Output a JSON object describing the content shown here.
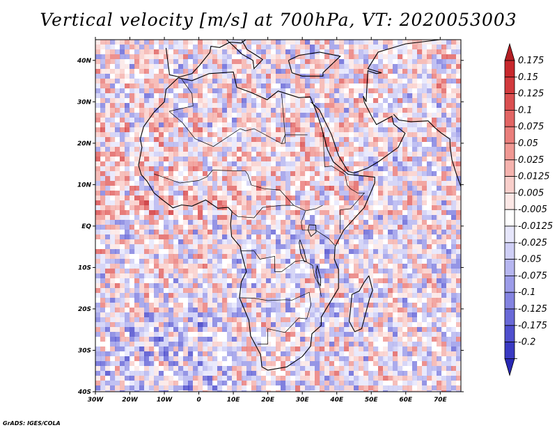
{
  "title": "Vertical velocity [m/s] at 700hPa, VT: 2020053003",
  "credit": "GrADS: IGES/COLA",
  "map": {
    "region": "Africa",
    "variable": "vertical velocity",
    "level": "700hPa",
    "valid_time": "2020053003",
    "lon_range": [
      -30,
      76
    ],
    "lat_range": [
      -40,
      45
    ],
    "lon_ticks": [
      {
        "value": -30,
        "label": "30W"
      },
      {
        "value": -20,
        "label": "20W"
      },
      {
        "value": -10,
        "label": "10W"
      },
      {
        "value": 0,
        "label": "0"
      },
      {
        "value": 10,
        "label": "10E"
      },
      {
        "value": 20,
        "label": "20E"
      },
      {
        "value": 30,
        "label": "30E"
      },
      {
        "value": 40,
        "label": "40E"
      },
      {
        "value": 50,
        "label": "50E"
      },
      {
        "value": 60,
        "label": "60E"
      },
      {
        "value": 70,
        "label": "70E"
      }
    ],
    "lat_ticks": [
      {
        "value": 40,
        "label": "40N"
      },
      {
        "value": 30,
        "label": "30N"
      },
      {
        "value": 20,
        "label": "20N"
      },
      {
        "value": 10,
        "label": "10N"
      },
      {
        "value": 0,
        "label": "EQ"
      },
      {
        "value": -10,
        "label": "10S"
      },
      {
        "value": -20,
        "label": "20S"
      },
      {
        "value": -30,
        "label": "30S"
      },
      {
        "value": -40,
        "label": "40S"
      }
    ]
  },
  "colorbar": {
    "levels": [
      {
        "label": "0.175",
        "color": "#c8282d"
      },
      {
        "label": "0.15",
        "color": "#d23a3d"
      },
      {
        "label": "0.125",
        "color": "#da4f50"
      },
      {
        "label": "0.1",
        "color": "#e26564"
      },
      {
        "label": "0.075",
        "color": "#ea7e7b"
      },
      {
        "label": "0.05",
        "color": "#f09893"
      },
      {
        "label": "0.025",
        "color": "#f5b3ae"
      },
      {
        "label": "0.0125",
        "color": "#f9cfcb"
      },
      {
        "label": "0.005",
        "color": "#fce8e6"
      },
      {
        "label": "-0.005",
        "color": "#ffffff"
      },
      {
        "label": "-0.0125",
        "color": "#e6e6fb"
      },
      {
        "label": "-0.025",
        "color": "#cfcff6"
      },
      {
        "label": "-0.05",
        "color": "#b6b6f0"
      },
      {
        "label": "-0.075",
        "color": "#9c9ce9"
      },
      {
        "label": "-0.1",
        "color": "#8383e1"
      },
      {
        "label": "-0.125",
        "color": "#6969d8"
      },
      {
        "label": "-0.175",
        "color": "#4f4fce"
      },
      {
        "label": "-0.2",
        "color": "#3a3ac3"
      }
    ],
    "top_arrow_color": "#b41e23",
    "bottom_arrow_color": "#2828b4"
  }
}
